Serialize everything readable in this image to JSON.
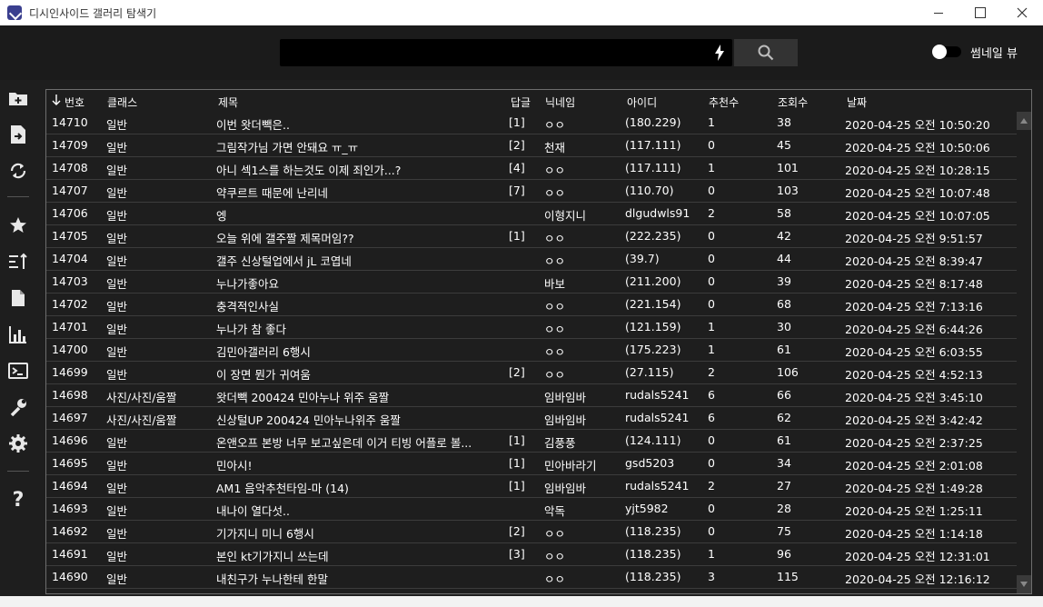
{
  "window": {
    "title": "디시인사이드 갤러리 탐색기"
  },
  "topbar": {
    "search_value": "",
    "toggle_label": "썸네일 뷰"
  },
  "sidebar": {
    "icons": [
      "add-folder-icon",
      "export-icon",
      "refresh-icon",
      "star-icon",
      "sort-icon",
      "document-icon",
      "bar-chart-icon",
      "terminal-icon",
      "wrench-icon",
      "gear-icon",
      "help-icon"
    ],
    "help_glyph": "?"
  },
  "table": {
    "columns": [
      "번호",
      "클래스",
      "제목",
      "답글",
      "닉네임",
      "아이디",
      "추천수",
      "조회수",
      "날짜"
    ],
    "rows": [
      [
        "14710",
        "일반",
        "이번 왓더빽은..",
        "[1]",
        "ㅇㅇ",
        "(180.229)",
        "1",
        "38",
        "2020-04-25 오전 10:50:20"
      ],
      [
        "14709",
        "일반",
        "그림작가님 가면 안돼요 ㅠ_ㅠ",
        "[2]",
        "천재",
        "(117.111)",
        "0",
        "45",
        "2020-04-25 오전 10:50:06"
      ],
      [
        "14708",
        "일반",
        "아니 섹1스를 하는것도 이제 죄인가...?",
        "[4]",
        "ㅇㅇ",
        "(117.111)",
        "1",
        "101",
        "2020-04-25 오전 10:28:15"
      ],
      [
        "14707",
        "일반",
        "약쿠르트 때문에 난리네",
        "[7]",
        "ㅇㅇ",
        "(110.70)",
        "0",
        "103",
        "2020-04-25 오전 10:07:48"
      ],
      [
        "14706",
        "일반",
        "엥",
        "",
        "이형지니",
        "dlgudwls91",
        "2",
        "58",
        "2020-04-25 오전 10:07:05"
      ],
      [
        "14705",
        "일반",
        "오늘 위에 갤주짤 제목머임??",
        "[1]",
        "ㅇㅇ",
        "(222.235)",
        "0",
        "42",
        "2020-04-25 오전 9:51:57"
      ],
      [
        "14704",
        "일반",
        "갤주 신상털업에서 jL 코엽네",
        "",
        "ㅇㅇ",
        "(39.7)",
        "0",
        "44",
        "2020-04-25 오전 8:39:47"
      ],
      [
        "14703",
        "일반",
        "누나가좋아요",
        "",
        "바보",
        "(211.200)",
        "0",
        "39",
        "2020-04-25 오전 8:17:48"
      ],
      [
        "14702",
        "일반",
        "충격적인사실",
        "",
        "ㅇㅇ",
        "(221.154)",
        "0",
        "68",
        "2020-04-25 오전 7:13:16"
      ],
      [
        "14701",
        "일반",
        "누나가 참 좋다",
        "",
        "ㅇㅇ",
        "(121.159)",
        "1",
        "30",
        "2020-04-25 오전 6:44:26"
      ],
      [
        "14700",
        "일반",
        "김민아갤러리 6행시",
        "",
        "ㅇㅇ",
        "(175.223)",
        "1",
        "61",
        "2020-04-25 오전 6:03:55"
      ],
      [
        "14699",
        "일반",
        "이 장면 뭔가 귀여움",
        "[2]",
        "ㅇㅇ",
        "(27.115)",
        "2",
        "106",
        "2020-04-25 오전 4:52:13"
      ],
      [
        "14698",
        "사진/사진/움짤",
        "왓더빽 200424 민아누나 위주 움짤",
        "",
        "임바임바",
        "rudals5241",
        "6",
        "66",
        "2020-04-25 오전 3:45:10"
      ],
      [
        "14697",
        "사진/사진/움짤",
        "신상털UP 200424 민아누나위주 움짤",
        "",
        "임바임바",
        "rudals5241",
        "6",
        "62",
        "2020-04-25 오전 3:42:42"
      ],
      [
        "14696",
        "일반",
        "온앤오프 본방 너무 보고싶은데 이거 티빙 어플로 볼...",
        "[1]",
        "김풍풍",
        "(124.111)",
        "0",
        "61",
        "2020-04-25 오전 2:37:25"
      ],
      [
        "14695",
        "일반",
        "민아시!",
        "[1]",
        "민아바라기",
        "gsd5203",
        "0",
        "34",
        "2020-04-25 오전 2:01:08"
      ],
      [
        "14694",
        "일반",
        "AM1 음악추천타임-마 (14)",
        "[1]",
        "임바임바",
        "rudals5241",
        "2",
        "27",
        "2020-04-25 오전 1:49:28"
      ],
      [
        "14693",
        "일반",
        "내나이 열다섯..",
        "",
        "악독",
        "yjt5982",
        "0",
        "28",
        "2020-04-25 오전 1:25:11"
      ],
      [
        "14692",
        "일반",
        "기가지니 미니 6행시",
        "[2]",
        "ㅇㅇ",
        "(118.235)",
        "0",
        "75",
        "2020-04-25 오전 1:14:18"
      ],
      [
        "14691",
        "일반",
        "본인 kt기가지니 쓰는데",
        "[3]",
        "ㅇㅇ",
        "(118.235)",
        "1",
        "96",
        "2020-04-25 오전 12:31:01"
      ],
      [
        "14690",
        "일반",
        "내친구가 누나한테 한말",
        "",
        "ㅇㅇ",
        "(118.235)",
        "3",
        "115",
        "2020-04-25 오전 12:16:12"
      ]
    ]
  }
}
